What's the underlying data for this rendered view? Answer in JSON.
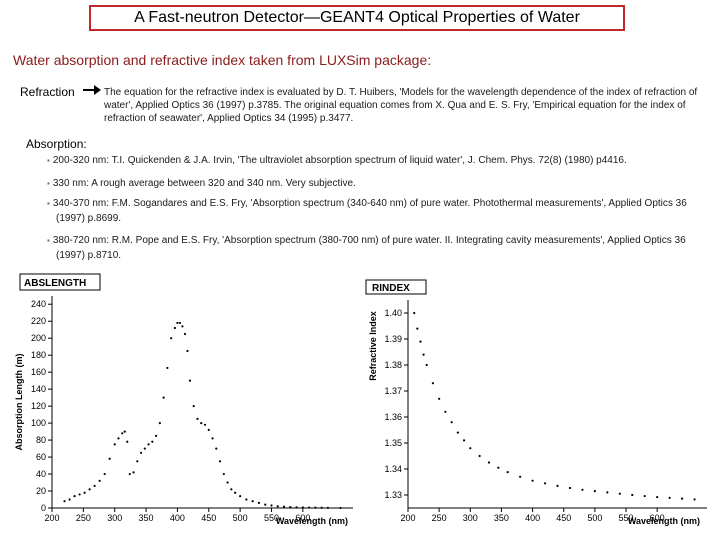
{
  "title": "A Fast-neutron Detector—GEANT4 Optical Properties of Water",
  "subtitle": "Water absorption and refractive index taken from LUXSim package:",
  "refraction": {
    "label": "Refraction",
    "text": "The equation for the refractive index is evaluated by D. T. Huibers, 'Models for the wavelength dependence of the index of refraction of water', Applied Optics 36 (1997) p.3785. The original equation comes from X. Qua and E. S. Fry, 'Empirical equation for the index of refraction of seawater', Applied Optics 34 (1995) p.3477."
  },
  "absorption": {
    "label": "Absorption:",
    "items": [
      "200-320 nm: T.I. Quickenden & J.A. Irvin, 'The ultraviolet absorption spectrum of liquid water', J. Chem. Phys. 72(8) (1980) p4416.",
      "330 nm: A rough average between 320 and 340 nm. Very subjective.",
      "340-370 nm: F.M. Sogandares and E.S. Fry, 'Absorption spectrum (340-640 nm) of pure water. Photothermal measurements', Applied Optics 36 (1997) p.8699.",
      "380-720 nm: R.M. Pope and E.S. Fry, 'Absorption spectrum (380-700 nm) of pure water. II. Integrating cavity measurements', Applied Optics 36 (1997) p.8710."
    ]
  },
  "chart_data": [
    {
      "type": "scatter",
      "title": "ABSLENGTH",
      "xlabel": "Wavelength (nm)",
      "ylabel": "Absorption Length (m)",
      "xlim": [
        200,
        680
      ],
      "ylim": [
        0,
        245
      ],
      "xticks": [
        200,
        250,
        300,
        350,
        400,
        450,
        500,
        550,
        600
      ],
      "yticks": [
        0,
        20,
        40,
        60,
        80,
        100,
        120,
        140,
        160,
        180,
        200,
        220,
        240
      ],
      "grid": false,
      "x": [
        220,
        228,
        236,
        244,
        252,
        260,
        268,
        276,
        284,
        292,
        300,
        306,
        312,
        316,
        320,
        324,
        330,
        336,
        342,
        348,
        354,
        360,
        366,
        372,
        378,
        384,
        390,
        396,
        400,
        404,
        408,
        412,
        416,
        420,
        426,
        432,
        438,
        444,
        450,
        456,
        462,
        468,
        474,
        480,
        486,
        492,
        500,
        510,
        520,
        530,
        540,
        550,
        560,
        570,
        580,
        590,
        600,
        610,
        620,
        630,
        640,
        660
      ],
      "y": [
        8,
        10,
        14,
        16,
        18,
        22,
        26,
        32,
        40,
        58,
        75,
        82,
        88,
        90,
        78,
        40,
        42,
        55,
        65,
        70,
        75,
        78,
        85,
        100,
        130,
        165,
        200,
        212,
        218,
        218,
        214,
        205,
        185,
        150,
        120,
        105,
        100,
        98,
        92,
        82,
        70,
        55,
        40,
        30,
        22,
        18,
        14,
        10,
        8,
        6,
        4,
        3,
        2,
        1.5,
        1,
        0.8,
        0.6,
        0.5,
        0.4,
        0.3,
        0.2,
        0.1
      ]
    },
    {
      "type": "scatter",
      "title": "RINDEX",
      "xlabel": "Wavelength (nm)",
      "ylabel": "Refractive Index",
      "xlim": [
        200,
        680
      ],
      "ylim": [
        1.325,
        1.405
      ],
      "xticks": [
        200,
        250,
        300,
        350,
        400,
        450,
        500,
        550,
        600
      ],
      "yticks": [
        1.33,
        1.34,
        1.35,
        1.36,
        1.37,
        1.38,
        1.39,
        1.4
      ],
      "grid": false,
      "x": [
        210,
        215,
        220,
        225,
        230,
        240,
        250,
        260,
        270,
        280,
        290,
        300,
        315,
        330,
        345,
        360,
        380,
        400,
        420,
        440,
        460,
        480,
        500,
        520,
        540,
        560,
        580,
        600,
        620,
        640,
        660
      ],
      "y": [
        1.4,
        1.394,
        1.389,
        1.384,
        1.38,
        1.373,
        1.367,
        1.362,
        1.358,
        1.354,
        1.351,
        1.348,
        1.345,
        1.3425,
        1.3405,
        1.3388,
        1.337,
        1.3355,
        1.3345,
        1.3335,
        1.3327,
        1.332,
        1.3315,
        1.331,
        1.3305,
        1.33,
        1.3296,
        1.3292,
        1.3289,
        1.3286,
        1.3283
      ]
    }
  ]
}
